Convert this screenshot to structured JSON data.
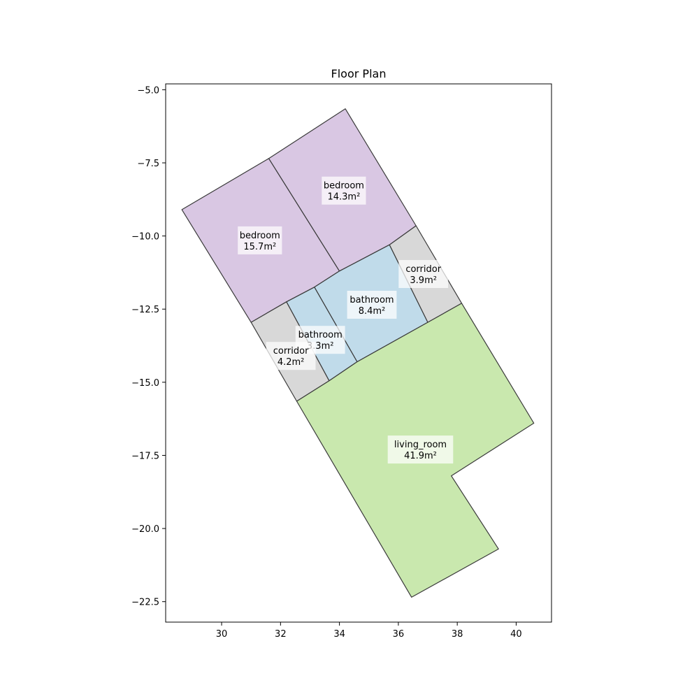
{
  "title": "Floor Plan",
  "axes": {
    "xlim": [
      28.1,
      41.2
    ],
    "ylim": [
      -23.2,
      -4.8
    ],
    "x_ticks": [
      30,
      32,
      34,
      36,
      38,
      40
    ],
    "y_ticks": [
      -5.0,
      -7.5,
      -10.0,
      -12.5,
      -15.0,
      -17.5,
      -20.0,
      -22.5
    ],
    "x_tick_labels": [
      "30",
      "32",
      "34",
      "36",
      "38",
      "40"
    ],
    "y_tick_labels": [
      "−5.0",
      "−7.5",
      "−10.0",
      "−12.5",
      "−15.0",
      "−17.5",
      "−20.0",
      "−22.5"
    ]
  },
  "colors": {
    "bedroom": "#d9c7e3",
    "bathroom": "#c0dbea",
    "corridor": "#d8d8d8",
    "living_room": "#c9e8ae"
  },
  "rooms": [
    {
      "type": "bedroom",
      "name": "bedroom",
      "area": "15.7m²",
      "polygon": [
        [
          28.65,
          -9.1
        ],
        [
          31.6,
          -7.35
        ],
        [
          34.0,
          -11.2
        ],
        [
          33.15,
          -11.75
        ],
        [
          32.2,
          -12.25
        ],
        [
          31.0,
          -12.95
        ]
      ],
      "label_pos": [
        31.3,
        -10.15
      ]
    },
    {
      "type": "bedroom",
      "name": "bedroom",
      "area": "14.3m²",
      "polygon": [
        [
          31.6,
          -7.35
        ],
        [
          34.2,
          -5.65
        ],
        [
          36.6,
          -9.65
        ],
        [
          35.7,
          -10.3
        ],
        [
          34.0,
          -11.2
        ]
      ],
      "label_pos": [
        34.15,
        -8.45
      ]
    },
    {
      "type": "bathroom",
      "name": "bathroom",
      "area": "8.4m²",
      "polygon": [
        [
          33.15,
          -11.75
        ],
        [
          34.0,
          -11.2
        ],
        [
          35.7,
          -10.3
        ],
        [
          37.0,
          -12.95
        ],
        [
          34.6,
          -14.3
        ]
      ],
      "label_pos": [
        35.1,
        -12.35
      ]
    },
    {
      "type": "bathroom",
      "name": "bathroom",
      "area": "3.3m²",
      "polygon": [
        [
          32.2,
          -12.25
        ],
        [
          33.15,
          -11.75
        ],
        [
          34.6,
          -14.3
        ],
        [
          33.65,
          -14.95
        ]
      ],
      "label_pos": [
        33.35,
        -13.55
      ]
    },
    {
      "type": "corridor",
      "name": "corridor",
      "area": "3.9m²",
      "polygon": [
        [
          35.7,
          -10.3
        ],
        [
          36.6,
          -9.65
        ],
        [
          38.15,
          -12.3
        ],
        [
          37.0,
          -12.95
        ]
      ],
      "label_pos": [
        36.85,
        -11.3
      ]
    },
    {
      "type": "corridor",
      "name": "corridor",
      "area": "4.2m²",
      "polygon": [
        [
          31.0,
          -12.95
        ],
        [
          32.2,
          -12.25
        ],
        [
          33.65,
          -14.95
        ],
        [
          32.55,
          -15.65
        ]
      ],
      "label_pos": [
        32.35,
        -14.1
      ]
    },
    {
      "type": "living_room",
      "name": "living_room",
      "area": "41.9m²",
      "polygon": [
        [
          32.55,
          -15.65
        ],
        [
          33.65,
          -14.95
        ],
        [
          34.6,
          -14.3
        ],
        [
          37.0,
          -12.95
        ],
        [
          38.15,
          -12.3
        ],
        [
          40.6,
          -16.4
        ],
        [
          37.8,
          -18.2
        ],
        [
          39.4,
          -20.7
        ],
        [
          36.45,
          -22.35
        ]
      ],
      "label_pos": [
        36.75,
        -17.3
      ]
    }
  ]
}
